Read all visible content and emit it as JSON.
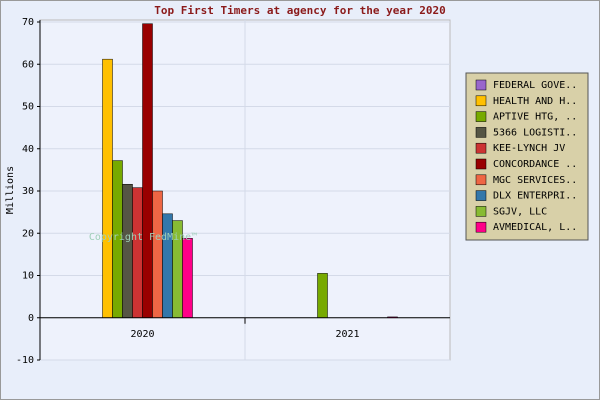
{
  "chart_data": {
    "type": "bar",
    "title": "Top First Timers at agency for the year 2020",
    "y_label": "Millions",
    "watermark": "Copyright FedMine™",
    "categories": [
      "2020",
      "2021"
    ],
    "ylim": [
      -10,
      70
    ],
    "yticks": [
      -10,
      0,
      10,
      20,
      30,
      40,
      50,
      60,
      70
    ],
    "grid": true,
    "legend": "right",
    "series": [
      {
        "name": "FEDERAL GOVE..",
        "color": "#9966cc",
        "values": [
          0,
          0
        ]
      },
      {
        "name": "HEALTH AND H..",
        "color": "#ffc000",
        "values": [
          61.2,
          0
        ]
      },
      {
        "name": "APTIVE HTG, ..",
        "color": "#77aa00",
        "values": [
          37.2,
          10.5
        ]
      },
      {
        "name": "5366 LOGISTI..",
        "color": "#555544",
        "values": [
          31.6,
          0
        ]
      },
      {
        "name": "KEE-LYNCH JV",
        "color": "#cc3333",
        "values": [
          30.8,
          0
        ]
      },
      {
        "name": "CONCORDANCE ..",
        "color": "#990000",
        "values": [
          69.6,
          0
        ]
      },
      {
        "name": "MGC SERVICES..",
        "color": "#ee6644",
        "values": [
          30,
          0
        ]
      },
      {
        "name": "DLX ENTERPRI..",
        "color": "#3377aa",
        "values": [
          24.6,
          0
        ]
      },
      {
        "name": "SGJV, LLC",
        "color": "#88bb33",
        "values": [
          23,
          0
        ]
      },
      {
        "name": "AVMEDICAL, L..",
        "color": "#ff0088",
        "values": [
          18.8,
          0.2
        ]
      }
    ]
  }
}
